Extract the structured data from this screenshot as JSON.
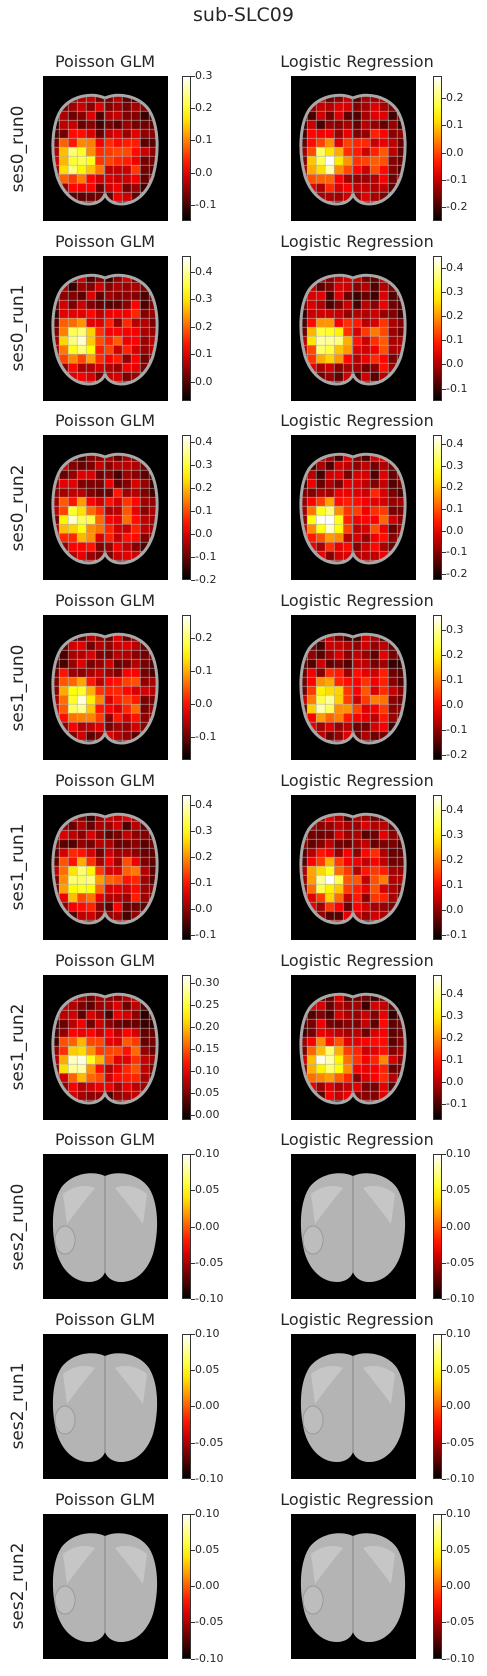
{
  "figure": {
    "title": "sub-SLC09"
  },
  "chart_data": [
    {
      "row": "ses0_run0",
      "col": "Poisson GLM",
      "type": "heatmap",
      "empty": false,
      "colorbar": {
        "cmap": "hot",
        "ticks": [
          "0.3",
          "0.2",
          "0.1",
          "0.0",
          "-0.1"
        ],
        "vmin": -0.15,
        "vmax": 0.3
      }
    },
    {
      "row": "ses0_run0",
      "col": "Logistic Regression",
      "type": "heatmap",
      "empty": false,
      "colorbar": {
        "cmap": "hot",
        "ticks": [
          "0.2",
          "0.1",
          "0.0",
          "-0.1",
          "-0.2"
        ],
        "vmin": -0.25,
        "vmax": 0.28
      }
    },
    {
      "row": "ses0_run1",
      "col": "Poisson GLM",
      "type": "heatmap",
      "empty": false,
      "colorbar": {
        "cmap": "hot",
        "ticks": [
          "0.4",
          "0.3",
          "0.2",
          "0.1",
          "0.0"
        ],
        "vmin": -0.07,
        "vmax": 0.46
      }
    },
    {
      "row": "ses0_run1",
      "col": "Logistic Regression",
      "type": "heatmap",
      "empty": false,
      "colorbar": {
        "cmap": "hot",
        "ticks": [
          "0.4",
          "0.3",
          "0.2",
          "0.1",
          "0.0",
          "-0.1"
        ],
        "vmin": -0.15,
        "vmax": 0.45
      }
    },
    {
      "row": "ses0_run2",
      "col": "Poisson GLM",
      "type": "heatmap",
      "empty": false,
      "colorbar": {
        "cmap": "hot",
        "ticks": [
          "0.4",
          "0.3",
          "0.2",
          "0.1",
          "0.0",
          "-0.1",
          "-0.2"
        ],
        "vmin": -0.2,
        "vmax": 0.43
      }
    },
    {
      "row": "ses0_run2",
      "col": "Logistic Regression",
      "type": "heatmap",
      "empty": false,
      "colorbar": {
        "cmap": "hot",
        "ticks": [
          "0.4",
          "0.3",
          "0.2",
          "0.1",
          "0.0",
          "-0.1",
          "-0.2"
        ],
        "vmin": -0.23,
        "vmax": 0.44
      }
    },
    {
      "row": "ses1_run0",
      "col": "Poisson GLM",
      "type": "heatmap",
      "empty": false,
      "colorbar": {
        "cmap": "hot",
        "ticks": [
          "0.2",
          "0.1",
          "0.0",
          "-0.1"
        ],
        "vmin": -0.17,
        "vmax": 0.27
      }
    },
    {
      "row": "ses1_run0",
      "col": "Logistic Regression",
      "type": "heatmap",
      "empty": false,
      "colorbar": {
        "cmap": "hot",
        "ticks": [
          "0.3",
          "0.2",
          "0.1",
          "0.0",
          "-0.1",
          "-0.2"
        ],
        "vmin": -0.22,
        "vmax": 0.36
      }
    },
    {
      "row": "ses1_run1",
      "col": "Poisson GLM",
      "type": "heatmap",
      "empty": false,
      "colorbar": {
        "cmap": "hot",
        "ticks": [
          "0.4",
          "0.3",
          "0.2",
          "0.1",
          "0.0",
          "-0.1"
        ],
        "vmin": -0.12,
        "vmax": 0.44
      }
    },
    {
      "row": "ses1_run1",
      "col": "Logistic Regression",
      "type": "heatmap",
      "empty": false,
      "colorbar": {
        "cmap": "hot",
        "ticks": [
          "0.4",
          "0.3",
          "0.2",
          "0.1",
          "0.0",
          "-0.1"
        ],
        "vmin": -0.12,
        "vmax": 0.46
      }
    },
    {
      "row": "ses1_run2",
      "col": "Poisson GLM",
      "type": "heatmap",
      "empty": false,
      "colorbar": {
        "cmap": "hot",
        "ticks": [
          "0.30",
          "0.25",
          "0.20",
          "0.15",
          "0.10",
          "0.05",
          "0.00"
        ],
        "vmin": -0.01,
        "vmax": 0.32
      }
    },
    {
      "row": "ses1_run2",
      "col": "Logistic Regression",
      "type": "heatmap",
      "empty": false,
      "colorbar": {
        "cmap": "hot",
        "ticks": [
          "0.4",
          "0.3",
          "0.2",
          "0.1",
          "0.0",
          "-0.1"
        ],
        "vmin": -0.17,
        "vmax": 0.49
      }
    },
    {
      "row": "ses2_run0",
      "col": "Poisson GLM",
      "type": "heatmap",
      "empty": true,
      "colorbar": {
        "cmap": "hot",
        "ticks": [
          "0.10",
          "0.05",
          "0.00",
          "-0.05",
          "-0.10"
        ],
        "vmin": -0.1,
        "vmax": 0.1
      }
    },
    {
      "row": "ses2_run0",
      "col": "Logistic Regression",
      "type": "heatmap",
      "empty": true,
      "colorbar": {
        "cmap": "hot",
        "ticks": [
          "0.10",
          "0.05",
          "0.00",
          "-0.05",
          "-0.10"
        ],
        "vmin": -0.1,
        "vmax": 0.1
      }
    },
    {
      "row": "ses2_run1",
      "col": "Poisson GLM",
      "type": "heatmap",
      "empty": true,
      "colorbar": {
        "cmap": "hot",
        "ticks": [
          "0.10",
          "0.05",
          "0.00",
          "-0.05",
          "-0.10"
        ],
        "vmin": -0.1,
        "vmax": 0.1
      }
    },
    {
      "row": "ses2_run1",
      "col": "Logistic Regression",
      "type": "heatmap",
      "empty": true,
      "colorbar": {
        "cmap": "hot",
        "ticks": [
          "0.10",
          "0.05",
          "0.00",
          "-0.05",
          "-0.10"
        ],
        "vmin": -0.1,
        "vmax": 0.1
      }
    },
    {
      "row": "ses2_run2",
      "col": "Poisson GLM",
      "type": "heatmap",
      "empty": true,
      "colorbar": {
        "cmap": "hot",
        "ticks": [
          "0.10",
          "0.05",
          "0.00",
          "-0.05",
          "-0.10"
        ],
        "vmin": -0.1,
        "vmax": 0.1
      }
    },
    {
      "row": "ses2_run2",
      "col": "Logistic Regression",
      "type": "heatmap",
      "empty": true,
      "colorbar": {
        "cmap": "hot",
        "ticks": [
          "0.10",
          "0.05",
          "0.00",
          "-0.05",
          "-0.10"
        ],
        "vmin": -0.1,
        "vmax": 0.1
      }
    }
  ]
}
